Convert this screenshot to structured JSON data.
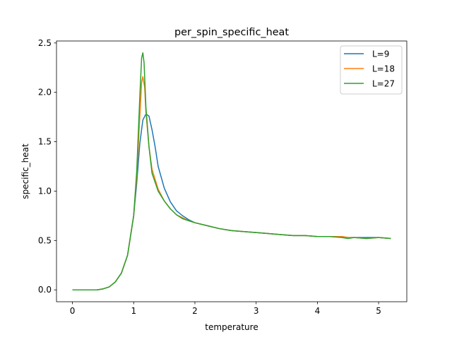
{
  "chart_data": {
    "type": "line",
    "title": "per_spin_specific_heat",
    "xlabel": "temperature",
    "ylabel": "specific_heat",
    "xlim": [
      -0.26,
      5.46
    ],
    "ylim": [
      -0.12,
      2.52
    ],
    "xticks": [
      0,
      1,
      2,
      3,
      4,
      5
    ],
    "xtick_labels": [
      "0",
      "1",
      "2",
      "3",
      "4",
      "5"
    ],
    "yticks": [
      0.0,
      0.5,
      1.0,
      1.5,
      2.0,
      2.5
    ],
    "ytick_labels": [
      "0.0",
      "0.5",
      "1.0",
      "1.5",
      "2.0",
      "2.5"
    ],
    "grid": false,
    "legend_position": "top-right",
    "series": [
      {
        "name": "L=9",
        "color": "#1f77b4",
        "x": [
          0,
          0.1,
          0.2,
          0.3,
          0.4,
          0.5,
          0.6,
          0.7,
          0.8,
          0.9,
          1.0,
          1.05,
          1.1,
          1.15,
          1.2,
          1.25,
          1.3,
          1.35,
          1.4,
          1.5,
          1.6,
          1.7,
          1.8,
          1.9,
          2.0,
          2.2,
          2.4,
          2.6,
          2.8,
          3.0,
          3.2,
          3.4,
          3.6,
          3.8,
          4.0,
          4.2,
          4.4,
          4.5,
          4.6,
          4.8,
          5.0,
          5.2
        ],
        "y": [
          0.0,
          0.0,
          0.0,
          0.0,
          0.0,
          0.01,
          0.03,
          0.08,
          0.17,
          0.35,
          0.75,
          1.08,
          1.48,
          1.72,
          1.78,
          1.76,
          1.62,
          1.45,
          1.25,
          1.03,
          0.89,
          0.8,
          0.75,
          0.71,
          0.68,
          0.65,
          0.62,
          0.6,
          0.59,
          0.58,
          0.57,
          0.56,
          0.55,
          0.55,
          0.54,
          0.54,
          0.54,
          0.53,
          0.53,
          0.53,
          0.53,
          0.52
        ]
      },
      {
        "name": "L=18",
        "color": "#ff7f0e",
        "x": [
          0,
          0.1,
          0.2,
          0.3,
          0.4,
          0.5,
          0.6,
          0.7,
          0.8,
          0.9,
          1.0,
          1.05,
          1.1,
          1.13,
          1.15,
          1.18,
          1.2,
          1.25,
          1.3,
          1.4,
          1.5,
          1.6,
          1.7,
          1.8,
          1.9,
          2.0,
          2.2,
          2.4,
          2.6,
          2.8,
          3.0,
          3.2,
          3.4,
          3.6,
          3.8,
          4.0,
          4.2,
          4.4,
          4.5,
          4.6,
          4.8,
          5.0,
          5.2
        ],
        "y": [
          0.0,
          0.0,
          0.0,
          0.0,
          0.0,
          0.01,
          0.03,
          0.08,
          0.17,
          0.35,
          0.75,
          1.15,
          1.75,
          2.1,
          2.16,
          2.05,
          1.8,
          1.45,
          1.22,
          1.02,
          0.9,
          0.82,
          0.76,
          0.73,
          0.7,
          0.68,
          0.65,
          0.62,
          0.6,
          0.59,
          0.58,
          0.57,
          0.56,
          0.55,
          0.55,
          0.54,
          0.54,
          0.54,
          0.53,
          0.53,
          0.52,
          0.53,
          0.52
        ]
      },
      {
        "name": "L=27",
        "color": "#2ca02c",
        "x": [
          0,
          0.1,
          0.2,
          0.3,
          0.4,
          0.5,
          0.6,
          0.7,
          0.8,
          0.9,
          1.0,
          1.05,
          1.1,
          1.13,
          1.15,
          1.17,
          1.2,
          1.25,
          1.3,
          1.4,
          1.5,
          1.6,
          1.7,
          1.8,
          1.9,
          2.0,
          2.2,
          2.4,
          2.6,
          2.8,
          3.0,
          3.2,
          3.4,
          3.6,
          3.8,
          4.0,
          4.2,
          4.4,
          4.5,
          4.6,
          4.8,
          5.0,
          5.2
        ],
        "y": [
          0.0,
          0.0,
          0.0,
          0.0,
          0.0,
          0.01,
          0.03,
          0.08,
          0.17,
          0.35,
          0.75,
          1.2,
          1.95,
          2.35,
          2.4,
          2.3,
          1.85,
          1.45,
          1.18,
          1.0,
          0.9,
          0.82,
          0.76,
          0.72,
          0.7,
          0.68,
          0.65,
          0.62,
          0.6,
          0.59,
          0.58,
          0.57,
          0.56,
          0.55,
          0.55,
          0.54,
          0.54,
          0.53,
          0.52,
          0.53,
          0.52,
          0.53,
          0.52
        ]
      }
    ]
  }
}
